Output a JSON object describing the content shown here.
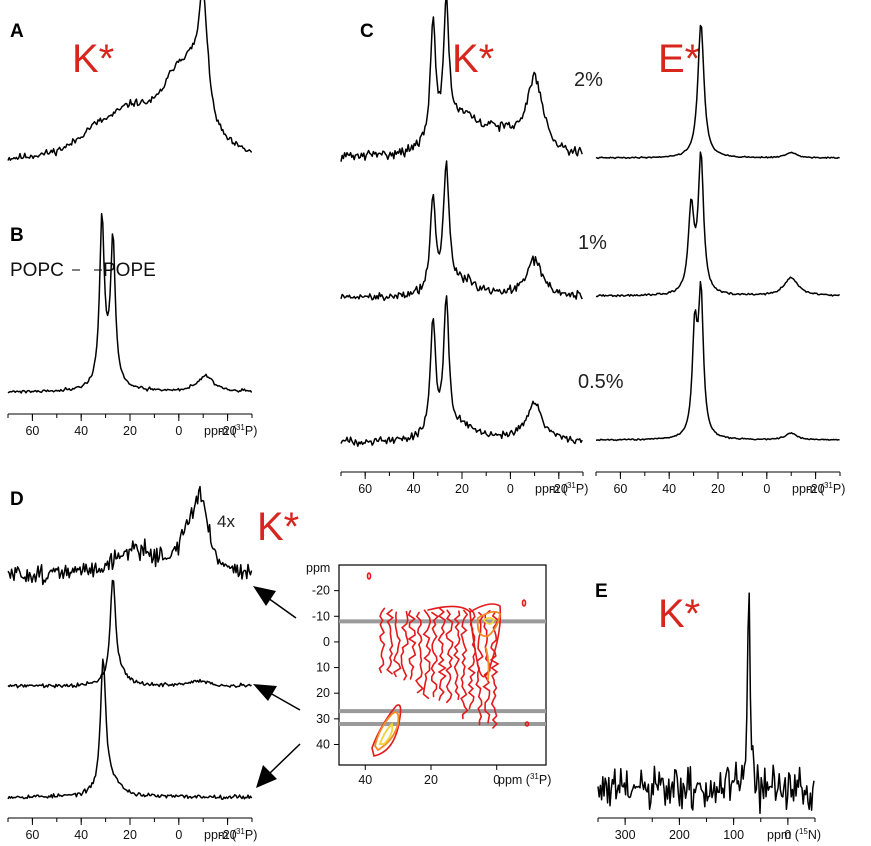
{
  "panels": {
    "A": {
      "letter": "A",
      "label": "K*"
    },
    "B": {
      "letter": "B",
      "left_label": "POPC",
      "right_label": "POPE"
    },
    "C": {
      "letter": "C",
      "label_left": "K*",
      "label_right": "E*",
      "concentrations": [
        "2%",
        "1%",
        "0.5%"
      ]
    },
    "D": {
      "letter": "D",
      "scale": "4x",
      "label": "K*"
    },
    "E": {
      "letter": "E",
      "label": "K*"
    }
  },
  "axes": {
    "p31": {
      "ticks": [
        60,
        40,
        20,
        0,
        -20
      ],
      "tick_labels": [
        "60",
        "40",
        "20",
        "0",
        "-20"
      ],
      "range": [
        70,
        -30
      ],
      "unit_text": "ppm (",
      "unit_sup": "31",
      "unit_nucleus": "P)"
    },
    "n15": {
      "ticks": [
        300,
        200,
        100,
        0
      ],
      "tick_labels": [
        "300",
        "200",
        "100",
        "0"
      ],
      "range": [
        350,
        -50
      ],
      "unit_text": "ppm (",
      "unit_sup": "15",
      "unit_nucleus": "N)"
    },
    "contour_y": {
      "ticks": [
        -20,
        -10,
        0,
        10,
        20,
        30,
        40
      ],
      "tick_labels": [
        "-20",
        "-10",
        "0",
        "10",
        "20",
        "30",
        "40"
      ],
      "label": "ppm",
      "range": [
        -30,
        48
      ]
    },
    "contour_x": {
      "ticks": [
        40,
        20,
        0
      ],
      "tick_labels": [
        "40",
        "20",
        "0"
      ],
      "range": [
        48,
        -15
      ],
      "unit_text": "ppm (",
      "unit_sup": "31",
      "unit_nucleus": "P)"
    }
  },
  "colors": {
    "label_red": "#d7261e",
    "contour_red": "#e31a1c",
    "contour_orange": "#f28c28",
    "contour_yellow": "#f2d33a",
    "band_gray": "#9a9a9a"
  },
  "chart_data": [
    {
      "id": "A",
      "type": "line",
      "title": "",
      "xlabel": "ppm (31P)",
      "ylabel": "",
      "xlim": [
        70,
        -30
      ],
      "series": [
        {
          "components": [
            {
              "center": -10,
              "width": 2.2,
              "height": 0.8
            },
            {
              "center": -6,
              "width": 4,
              "height": 0.2
            },
            {
              "center": 0,
              "width": 9,
              "height": 0.5
            },
            {
              "center": 20,
              "width": 13,
              "height": 0.28
            },
            {
              "center": 35,
              "width": 8,
              "height": 0.1
            }
          ],
          "noise": 0.02
        }
      ]
    },
    {
      "id": "B",
      "type": "line",
      "title": "",
      "xlabel": "ppm (31P)",
      "ylabel": "",
      "xlim": [
        70,
        -30
      ],
      "series": [
        {
          "components": [
            {
              "center": 31.5,
              "width": 1.1,
              "height": 1.0
            },
            {
              "center": 27,
              "width": 1.1,
              "height": 0.85
            },
            {
              "center": 29,
              "width": 4,
              "height": 0.12
            },
            {
              "center": -11,
              "width": 4,
              "height": 0.1
            }
          ],
          "noise": 0.008
        }
      ]
    },
    {
      "id": "C-K-2",
      "type": "line",
      "title": "",
      "xlabel": "ppm (31P)",
      "ylabel": "",
      "xlim": [
        70,
        -30
      ],
      "series": [
        {
          "components": [
            {
              "center": 32,
              "width": 1.3,
              "height": 0.9
            },
            {
              "center": 26.5,
              "width": 1.3,
              "height": 1.0
            },
            {
              "center": 20,
              "width": 8,
              "height": 0.25
            },
            {
              "center": -10,
              "width": 4,
              "height": 0.55
            },
            {
              "center": 5,
              "width": 10,
              "height": 0.15
            }
          ],
          "noise": 0.03
        }
      ]
    },
    {
      "id": "C-K-1",
      "type": "line",
      "title": "",
      "xlabel": "ppm (31P)",
      "ylabel": "",
      "xlim": [
        70,
        -30
      ],
      "series": [
        {
          "components": [
            {
              "center": 32,
              "width": 1.3,
              "height": 0.75
            },
            {
              "center": 26.5,
              "width": 1.3,
              "height": 1.0
            },
            {
              "center": 20,
              "width": 8,
              "height": 0.12
            },
            {
              "center": -10,
              "width": 4,
              "height": 0.3
            }
          ],
          "noise": 0.03
        }
      ]
    },
    {
      "id": "C-K-0.5",
      "type": "line",
      "title": "",
      "xlabel": "ppm (31P)",
      "ylabel": "",
      "xlim": [
        70,
        -30
      ],
      "series": [
        {
          "components": [
            {
              "center": 32,
              "width": 1.3,
              "height": 0.85
            },
            {
              "center": 26.5,
              "width": 1.3,
              "height": 1.0
            },
            {
              "center": 20,
              "width": 8,
              "height": 0.1
            },
            {
              "center": -10,
              "width": 4,
              "height": 0.28
            }
          ],
          "noise": 0.025
        }
      ]
    },
    {
      "id": "C-E-2",
      "type": "line",
      "title": "",
      "xlabel": "ppm (31P)",
      "ylabel": "",
      "xlim": [
        70,
        -30
      ],
      "series": [
        {
          "components": [
            {
              "center": 27,
              "width": 1.5,
              "height": 1.0
            },
            {
              "center": -10,
              "width": 2.5,
              "height": 0.04
            }
          ],
          "noise": 0.004
        }
      ]
    },
    {
      "id": "C-E-1",
      "type": "line",
      "title": "",
      "xlabel": "ppm (31P)",
      "ylabel": "",
      "xlim": [
        70,
        -30
      ],
      "series": [
        {
          "components": [
            {
              "center": 31,
              "width": 1.4,
              "height": 0.62
            },
            {
              "center": 27,
              "width": 1.3,
              "height": 1.0
            },
            {
              "center": -10,
              "width": 3.5,
              "height": 0.13
            }
          ],
          "noise": 0.006
        }
      ]
    },
    {
      "id": "C-E-0.5",
      "type": "line",
      "title": "",
      "xlabel": "ppm (31P)",
      "ylabel": "",
      "xlim": [
        70,
        -30
      ],
      "series": [
        {
          "components": [
            {
              "center": 29.5,
              "width": 1.2,
              "height": 0.75
            },
            {
              "center": 27,
              "width": 1.2,
              "height": 1.0
            },
            {
              "center": -10,
              "width": 2.5,
              "height": 0.05
            }
          ],
          "noise": 0.004
        }
      ]
    },
    {
      "id": "D-top",
      "type": "line",
      "title": "",
      "xlabel": "ppm (31P)",
      "ylabel": "",
      "xlim": [
        70,
        -30
      ],
      "series": [
        {
          "components": [
            {
              "center": -9,
              "width": 3.5,
              "height": 0.75
            },
            {
              "center": -4,
              "width": 5,
              "height": 0.35
            },
            {
              "center": 18,
              "width": 10,
              "height": 0.3
            }
          ],
          "noise": 0.09
        }
      ]
    },
    {
      "id": "D-middle",
      "type": "line",
      "title": "",
      "xlabel": "ppm (31P)",
      "ylabel": "",
      "xlim": [
        70,
        -30
      ],
      "series": [
        {
          "components": [
            {
              "center": 27,
              "width": 1.3,
              "height": 1.0
            },
            {
              "center": 24,
              "width": 4,
              "height": 0.08
            },
            {
              "center": -8,
              "width": 4,
              "height": 0.05
            }
          ],
          "noise": 0.015
        }
      ]
    },
    {
      "id": "D-bottom",
      "type": "line",
      "title": "",
      "xlabel": "ppm (31P)",
      "ylabel": "",
      "xlim": [
        70,
        -30
      ],
      "series": [
        {
          "components": [
            {
              "center": 31,
              "width": 1.3,
              "height": 1.0
            },
            {
              "center": 27,
              "width": 4,
              "height": 0.1
            }
          ],
          "noise": 0.013
        }
      ]
    },
    {
      "id": "D-2D",
      "type": "heatmap",
      "title": "",
      "xlabel": "ppm (31P)",
      "ylabel": "ppm",
      "xlim": [
        48,
        -15
      ],
      "ylim": [
        -30,
        48
      ],
      "slices_ppm": [
        -8,
        27,
        32
      ]
    },
    {
      "id": "E",
      "type": "line",
      "title": "",
      "xlabel": "ppm (15N)",
      "ylabel": "",
      "xlim": [
        350,
        -50
      ],
      "series": [
        {
          "components": [
            {
              "center": 72,
              "width": 3,
              "height": 1.0
            }
          ],
          "noise": 0.09
        }
      ]
    }
  ]
}
